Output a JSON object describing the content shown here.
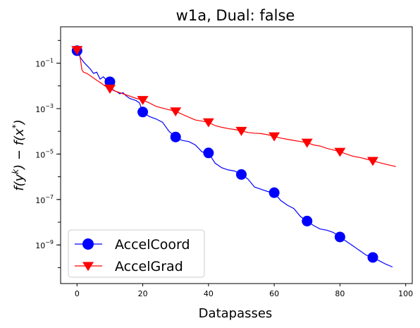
{
  "chart_data": {
    "type": "line",
    "title": "w1a, Dual: false",
    "xlabel": "Datapasses",
    "ylabel_parts": [
      "f(y",
      "k",
      ") − f(x",
      "*",
      ")"
    ],
    "x_range": [
      -5,
      102
    ],
    "y_log_range": [
      -10.7,
      0.6
    ],
    "y_scale": "log",
    "x_ticks": [
      0,
      20,
      40,
      60,
      80,
      100
    ],
    "y_ticks": [
      {
        "exp": -9,
        "label": "10",
        "sup": "−9"
      },
      {
        "exp": -7,
        "label": "10",
        "sup": "−7"
      },
      {
        "exp": -5,
        "label": "10",
        "sup": "−5"
      },
      {
        "exp": -3,
        "label": "10",
        "sup": "−3"
      },
      {
        "exp": -1,
        "label": "10",
        "sup": "−1"
      }
    ],
    "grid": false,
    "legend_position": "lower-left",
    "series": [
      {
        "name": "AccelCoord",
        "color": "#0000ff",
        "marker": "circle",
        "line": [
          [
            0,
            -0.45
          ],
          [
            1,
            -0.75
          ],
          [
            2,
            -0.95
          ],
          [
            3,
            -1.1
          ],
          [
            4,
            -1.25
          ],
          [
            5,
            -1.45
          ],
          [
            6,
            -1.4
          ],
          [
            7,
            -1.7
          ],
          [
            8,
            -1.6
          ],
          [
            9,
            -1.75
          ],
          [
            10,
            -1.82
          ],
          [
            11,
            -2.2
          ],
          [
            12,
            -2.25
          ],
          [
            13,
            -2.35
          ],
          [
            14,
            -2.3
          ],
          [
            15,
            -2.45
          ],
          [
            16,
            -2.55
          ],
          [
            17,
            -2.6
          ],
          [
            18,
            -2.65
          ],
          [
            19,
            -2.75
          ],
          [
            20,
            -3.15
          ],
          [
            22,
            -3.35
          ],
          [
            24,
            -3.45
          ],
          [
            26,
            -3.6
          ],
          [
            28,
            -4.0
          ],
          [
            30,
            -4.25
          ],
          [
            32,
            -4.4
          ],
          [
            34,
            -4.45
          ],
          [
            36,
            -4.6
          ],
          [
            38,
            -4.9
          ],
          [
            40,
            -4.95
          ],
          [
            42,
            -5.4
          ],
          [
            44,
            -5.6
          ],
          [
            46,
            -5.7
          ],
          [
            48,
            -5.75
          ],
          [
            50,
            -5.9
          ],
          [
            52,
            -6.1
          ],
          [
            54,
            -6.45
          ],
          [
            56,
            -6.55
          ],
          [
            58,
            -6.65
          ],
          [
            60,
            -6.7
          ],
          [
            62,
            -7.05
          ],
          [
            64,
            -7.25
          ],
          [
            66,
            -7.4
          ],
          [
            68,
            -7.75
          ],
          [
            70,
            -7.95
          ],
          [
            72,
            -8.15
          ],
          [
            74,
            -8.3
          ],
          [
            76,
            -8.35
          ],
          [
            78,
            -8.45
          ],
          [
            80,
            -8.65
          ],
          [
            82,
            -8.85
          ],
          [
            84,
            -9.05
          ],
          [
            86,
            -9.25
          ],
          [
            88,
            -9.45
          ],
          [
            90,
            -9.55
          ],
          [
            92,
            -9.7
          ],
          [
            94,
            -9.85
          ],
          [
            96,
            -9.97
          ]
        ],
        "markers": [
          [
            0,
            -0.45
          ],
          [
            10,
            -1.82
          ],
          [
            20,
            -3.15
          ],
          [
            30,
            -4.25
          ],
          [
            40,
            -4.95
          ],
          [
            50,
            -5.9
          ],
          [
            60,
            -6.7
          ],
          [
            70,
            -7.95
          ],
          [
            80,
            -8.65
          ],
          [
            90,
            -9.55
          ]
        ]
      },
      {
        "name": "AccelGrad",
        "color": "#ff0000",
        "marker": "triangle-down",
        "line": [
          [
            0,
            -0.42
          ],
          [
            0.8,
            -0.6
          ],
          [
            1.5,
            -1.3
          ],
          [
            2,
            -1.4
          ],
          [
            3,
            -1.45
          ],
          [
            4,
            -1.55
          ],
          [
            5,
            -1.65
          ],
          [
            6,
            -1.75
          ],
          [
            7,
            -1.85
          ],
          [
            8,
            -1.95
          ],
          [
            9,
            -2.05
          ],
          [
            10,
            -2.12
          ],
          [
            12,
            -2.25
          ],
          [
            14,
            -2.35
          ],
          [
            16,
            -2.45
          ],
          [
            18,
            -2.55
          ],
          [
            20,
            -2.62
          ],
          [
            22,
            -2.75
          ],
          [
            24,
            -2.9
          ],
          [
            26,
            -2.98
          ],
          [
            28,
            -3.05
          ],
          [
            30,
            -3.12
          ],
          [
            32,
            -3.25
          ],
          [
            34,
            -3.38
          ],
          [
            36,
            -3.5
          ],
          [
            38,
            -3.55
          ],
          [
            40,
            -3.6
          ],
          [
            42,
            -3.75
          ],
          [
            44,
            -3.82
          ],
          [
            46,
            -3.88
          ],
          [
            48,
            -3.92
          ],
          [
            50,
            -3.98
          ],
          [
            52,
            -4.05
          ],
          [
            54,
            -4.08
          ],
          [
            56,
            -4.1
          ],
          [
            58,
            -4.15
          ],
          [
            60,
            -4.22
          ],
          [
            62,
            -4.3
          ],
          [
            64,
            -4.35
          ],
          [
            66,
            -4.4
          ],
          [
            68,
            -4.45
          ],
          [
            70,
            -4.5
          ],
          [
            72,
            -4.6
          ],
          [
            74,
            -4.65
          ],
          [
            76,
            -4.75
          ],
          [
            78,
            -4.82
          ],
          [
            80,
            -4.9
          ],
          [
            82,
            -5.0
          ],
          [
            84,
            -5.1
          ],
          [
            86,
            -5.15
          ],
          [
            88,
            -5.22
          ],
          [
            90,
            -5.3
          ],
          [
            92,
            -5.38
          ],
          [
            94,
            -5.45
          ],
          [
            97,
            -5.55
          ]
        ],
        "markers": [
          [
            0,
            -0.42
          ],
          [
            10,
            -2.12
          ],
          [
            20,
            -2.62
          ],
          [
            30,
            -3.12
          ],
          [
            40,
            -3.6
          ],
          [
            50,
            -3.98
          ],
          [
            60,
            -4.22
          ],
          [
            70,
            -4.5
          ],
          [
            80,
            -4.9
          ],
          [
            90,
            -5.3
          ]
        ]
      }
    ]
  }
}
